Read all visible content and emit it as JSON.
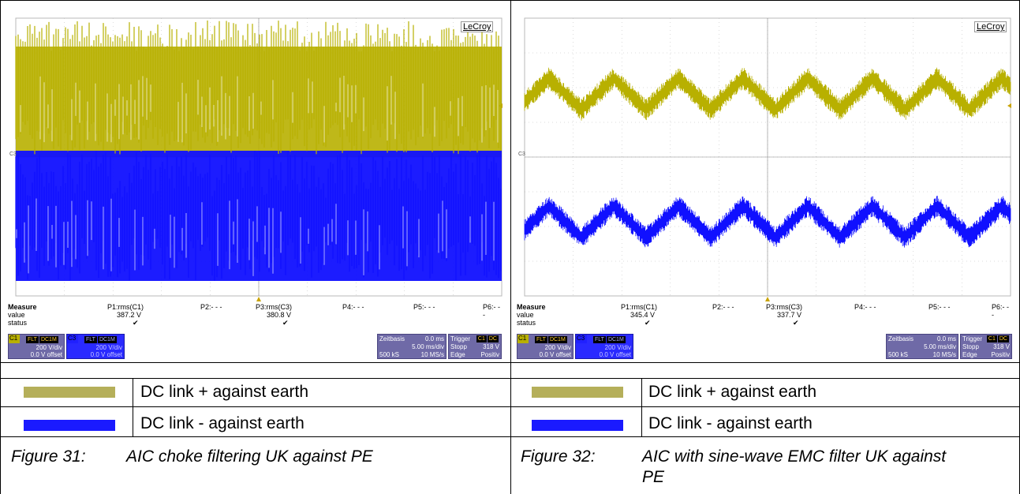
{
  "panels": [
    {
      "brand": "LeCroy",
      "channel_marker": "C3",
      "measure": {
        "header": "Measure",
        "row_labels": [
          "value",
          "status"
        ],
        "params": [
          {
            "name": "P1:rms(C1)",
            "value": "387.2 V",
            "status": "✔"
          },
          {
            "name": "P2:- - -",
            "value": "",
            "status": ""
          },
          {
            "name": "P3:rms(C3)",
            "value": "380.8 V",
            "status": "✔"
          },
          {
            "name": "P4:- - -",
            "value": "",
            "status": ""
          },
          {
            "name": "P5:- - -",
            "value": "",
            "status": ""
          },
          {
            "name": "P6:- - -",
            "value": "",
            "status": ""
          }
        ]
      },
      "c1": {
        "name": "C1",
        "tags": [
          "FLT",
          "DC1M"
        ],
        "vdiv": "200 V/div",
        "offset": "0.0 V offset"
      },
      "c3": {
        "name": "C3",
        "tags": [
          "FLT",
          "DC1M"
        ],
        "vdiv": "200 V/div",
        "offset": "0.0 V offset"
      },
      "timebase": {
        "label": "Zeitbasis",
        "delay": "0.0 ms",
        "tdiv": "5.00 ms/div",
        "samples": "500 kS",
        "rate": "10 MS/s"
      },
      "trigger": {
        "label": "Trigger",
        "tags": [
          "C1",
          "DC"
        ],
        "mode": "Stopp",
        "level": "318 V",
        "type": "Edge",
        "slope": "Positiv"
      }
    },
    {
      "brand": "LeCroy",
      "channel_marker": "C3",
      "measure": {
        "header": "Measure",
        "row_labels": [
          "value",
          "status"
        ],
        "params": [
          {
            "name": "P1:rms(C1)",
            "value": "345.4 V",
            "status": "✔"
          },
          {
            "name": "P2:- - -",
            "value": "",
            "status": ""
          },
          {
            "name": "P3:rms(C3)",
            "value": "337.7 V",
            "status": "✔"
          },
          {
            "name": "P4:- - -",
            "value": "",
            "status": ""
          },
          {
            "name": "P5:- - -",
            "value": "",
            "status": ""
          },
          {
            "name": "P6:- - -",
            "value": "",
            "status": ""
          }
        ]
      },
      "c1": {
        "name": "C1",
        "tags": [
          "FLT",
          "DC1M"
        ],
        "vdiv": "200 V/div",
        "offset": "0.0 V offset"
      },
      "c3": {
        "name": "C3",
        "tags": [
          "FLT",
          "DC1M"
        ],
        "vdiv": "200 V/div",
        "offset": "0.0 V offset"
      },
      "timebase": {
        "label": "Zeitbasis",
        "delay": "0.0 ms",
        "tdiv": "5.00 ms/div",
        "samples": "500 kS",
        "rate": "10 MS/s"
      },
      "trigger": {
        "label": "Trigger",
        "tags": [
          "C1",
          "DC"
        ],
        "mode": "Stopp",
        "level": "318 V",
        "type": "Edge",
        "slope": "Positiv"
      }
    }
  ],
  "legend": [
    {
      "color": "#b5af5a",
      "label": "DC link + against earth"
    },
    {
      "color": "#1a1aff",
      "label": "DC link - against earth"
    }
  ],
  "captions": [
    {
      "number": "Figure 31:",
      "text": "AIC choke filtering UK against PE"
    },
    {
      "number": "Figure 32:",
      "text": "AIC with sine-wave EMC filter UK against PE"
    }
  ],
  "colors": {
    "channel1": "#b8b000",
    "channel3": "#1010ff",
    "grid": "#b8b8b8",
    "infobox": "#6f6aa7"
  }
}
